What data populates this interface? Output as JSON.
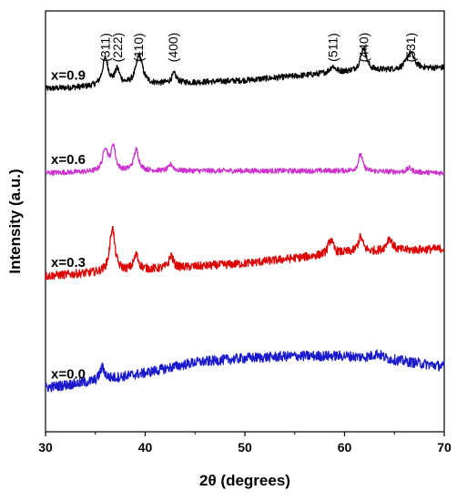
{
  "chart_data": {
    "type": "line",
    "title": "",
    "xlabel": "2θ (degrees)",
    "ylabel": "Intensity (a.u.)",
    "xlim": [
      30,
      70
    ],
    "x_ticks": [
      30,
      40,
      50,
      60,
      70
    ],
    "ylim": [
      0,
      10
    ],
    "y_tick_labels_shown": false,
    "grid": false,
    "legend": "none",
    "peak_labels": [
      {
        "text": "(311)",
        "x": 36.0
      },
      {
        "text": "(222)",
        "x": 37.2
      },
      {
        "text": "(110)",
        "x": 39.3
      },
      {
        "text": "(400)",
        "x": 42.8
      },
      {
        "text": "(511)",
        "x": 58.8
      },
      {
        "text": "(440)",
        "x": 61.9
      },
      {
        "text": "(531)",
        "x": 66.6
      }
    ],
    "series": [
      {
        "name": "x=0.9",
        "color": "#000000",
        "baseline": [
          [
            30,
            8.15
          ],
          [
            40,
            8.25
          ],
          [
            50,
            8.35
          ],
          [
            60,
            8.55
          ],
          [
            70,
            8.65
          ]
        ],
        "peaks": [
          {
            "x": 36.0,
            "h": 0.65,
            "w": 0.35
          },
          {
            "x": 37.2,
            "h": 0.35,
            "w": 0.3
          },
          {
            "x": 39.4,
            "h": 0.7,
            "w": 0.4
          },
          {
            "x": 42.9,
            "h": 0.22,
            "w": 0.3
          },
          {
            "x": 58.8,
            "h": 0.15,
            "w": 0.35
          },
          {
            "x": 61.9,
            "h": 0.55,
            "w": 0.35
          },
          {
            "x": 66.6,
            "h": 0.4,
            "w": 0.45
          }
        ]
      },
      {
        "name": "x=0.6",
        "color": "#cc33cc",
        "baseline": [
          [
            30,
            6.15
          ],
          [
            40,
            6.2
          ],
          [
            50,
            6.2
          ],
          [
            60,
            6.2
          ],
          [
            70,
            6.15
          ]
        ],
        "peaks": [
          {
            "x": 36.0,
            "h": 0.55,
            "w": 0.3
          },
          {
            "x": 36.8,
            "h": 0.6,
            "w": 0.25
          },
          {
            "x": 39.1,
            "h": 0.5,
            "w": 0.3
          },
          {
            "x": 42.6,
            "h": 0.15,
            "w": 0.25
          },
          {
            "x": 61.6,
            "h": 0.4,
            "w": 0.25
          },
          {
            "x": 66.5,
            "h": 0.1,
            "w": 0.3
          }
        ]
      },
      {
        "name": "x=0.3",
        "color": "#dd0000",
        "baseline": [
          [
            30,
            3.7
          ],
          [
            40,
            3.85
          ],
          [
            50,
            4.0
          ],
          [
            60,
            4.25
          ],
          [
            70,
            4.35
          ]
        ],
        "peaks": [
          {
            "x": 36.7,
            "h": 1.05,
            "w": 0.3
          },
          {
            "x": 39.1,
            "h": 0.35,
            "w": 0.3
          },
          {
            "x": 42.6,
            "h": 0.3,
            "w": 0.25
          },
          {
            "x": 58.6,
            "h": 0.35,
            "w": 0.3
          },
          {
            "x": 61.6,
            "h": 0.35,
            "w": 0.3
          },
          {
            "x": 64.5,
            "h": 0.3,
            "w": 0.35
          }
        ]
      },
      {
        "name": "x=0.0",
        "color": "#1a1acc",
        "baseline": [
          [
            30,
            1.05
          ],
          [
            35,
            1.2
          ],
          [
            40,
            1.4
          ],
          [
            45,
            1.65
          ],
          [
            50,
            1.75
          ],
          [
            55,
            1.8
          ],
          [
            60,
            1.8
          ],
          [
            65,
            1.7
          ],
          [
            70,
            1.55
          ]
        ],
        "peaks": [
          {
            "x": 35.7,
            "h": 0.3,
            "w": 0.3
          },
          {
            "x": 63.3,
            "h": 0.12,
            "w": 0.6
          }
        ]
      }
    ]
  }
}
